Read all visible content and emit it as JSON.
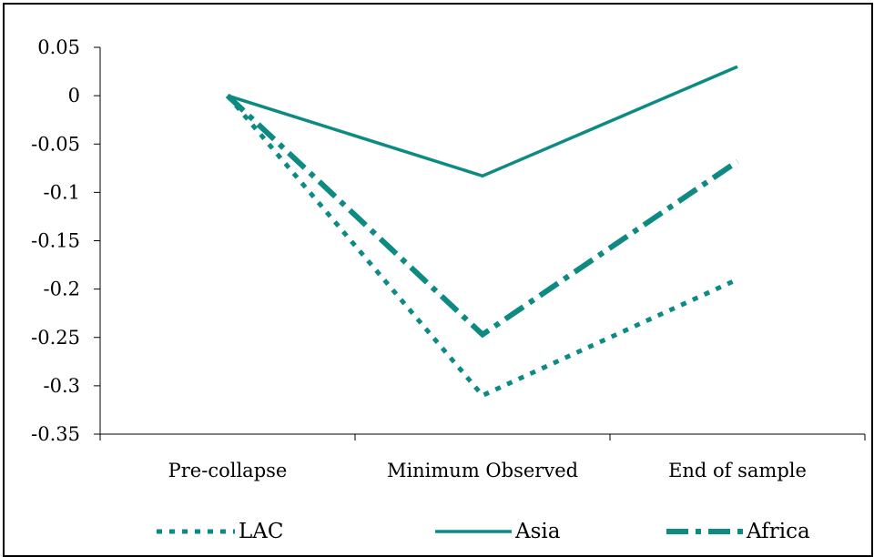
{
  "chart_data": {
    "type": "line",
    "title": "",
    "xlabel": "",
    "ylabel": "",
    "categories": [
      "Pre-collapse",
      "Minimum Observed",
      "End of sample"
    ],
    "ylim": [
      -0.35,
      0.05
    ],
    "yticks": [
      0.05,
      0,
      -0.05,
      -0.1,
      -0.15,
      -0.2,
      -0.25,
      -0.3,
      -0.35
    ],
    "ytick_labels": [
      "0.05",
      "0",
      "-0.05",
      "-0.1",
      "-0.15",
      "-0.2",
      "-0.25",
      "-0.3",
      "-0.35"
    ],
    "grid": false,
    "legend_position": "bottom",
    "series": [
      {
        "name": "LAC",
        "values": [
          0,
          -0.31,
          -0.19
        ],
        "color": "#0d8a82",
        "style": "dotted"
      },
      {
        "name": "Asia",
        "values": [
          0,
          -0.083,
          0.03
        ],
        "color": "#0d8a82",
        "style": "solid"
      },
      {
        "name": "Africa",
        "values": [
          0,
          -0.247,
          -0.068
        ],
        "color": "#0d8a82",
        "style": "dash-dot"
      }
    ]
  }
}
